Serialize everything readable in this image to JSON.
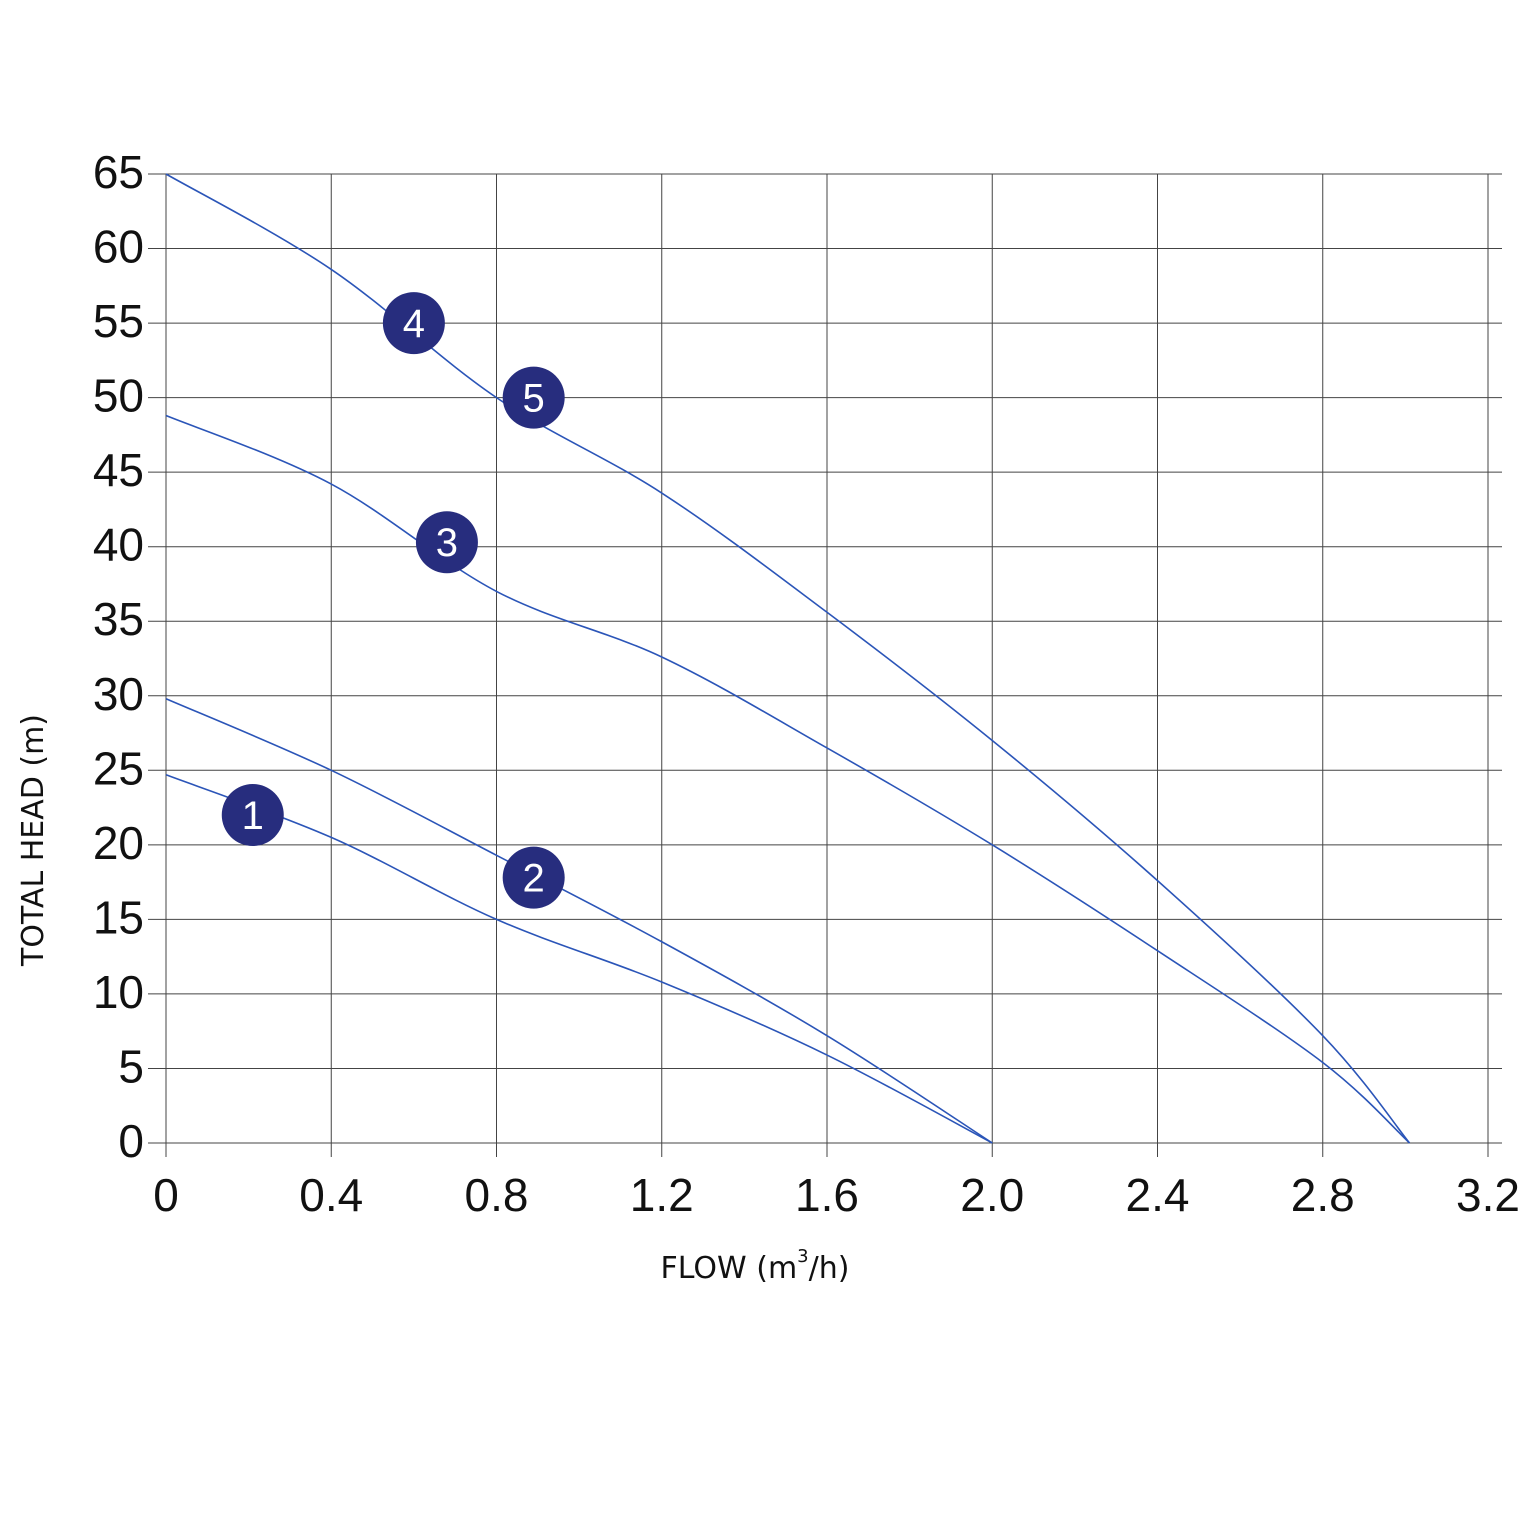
{
  "chart_data": {
    "type": "line",
    "xlabel": "FLOW (m³/h)",
    "xlabel_main": "FLOW (m",
    "xlabel_sup": "3",
    "xlabel_tail": "/h)",
    "ylabel": "TOTAL HEAD (m)",
    "x_ticks": [
      "0",
      "0.4",
      "0.8",
      "1.2",
      "1.6",
      "2.0",
      "2.4",
      "2.8",
      "3.2"
    ],
    "y_ticks": [
      "0",
      "5",
      "10",
      "15",
      "20",
      "25",
      "30",
      "35",
      "40",
      "45",
      "50",
      "55",
      "60",
      "65"
    ],
    "xlim": [
      0,
      3.2
    ],
    "ylim": [
      0,
      65
    ],
    "grid": true,
    "line_color": "#2b55b8",
    "badge_color": "#272d7e",
    "series": [
      {
        "label": "1",
        "points": [
          [
            0,
            24.7
          ],
          [
            0.4,
            20.5
          ],
          [
            0.8,
            15.0
          ],
          [
            1.2,
            10.8
          ],
          [
            1.6,
            5.9
          ],
          [
            2.0,
            0
          ]
        ],
        "badge": [
          0.21,
          22.0
        ]
      },
      {
        "label": "2",
        "points": [
          [
            0,
            29.8
          ],
          [
            0.4,
            25.0
          ],
          [
            0.8,
            19.3
          ],
          [
            1.2,
            13.5
          ],
          [
            1.6,
            7.2
          ],
          [
            2.0,
            0
          ]
        ],
        "badge": [
          0.89,
          17.8
        ]
      },
      {
        "label": "3",
        "points": [
          [
            0,
            48.8
          ],
          [
            0.4,
            44.2
          ],
          [
            0.8,
            37.0
          ],
          [
            1.2,
            32.6
          ],
          [
            1.6,
            26.5
          ],
          [
            2.0,
            20.0
          ],
          [
            2.4,
            12.9
          ],
          [
            2.8,
            5.4
          ],
          [
            3.01,
            0
          ]
        ],
        "badge": [
          0.68,
          40.3
        ]
      },
      {
        "label": "4",
        "points": [
          [
            0,
            65
          ],
          [
            0.4,
            58.6
          ],
          [
            0.8,
            50.0
          ],
          [
            1.2,
            43.6
          ],
          [
            1.6,
            35.6
          ],
          [
            2.0,
            27.0
          ],
          [
            2.4,
            17.6
          ],
          [
            2.8,
            7.2
          ],
          [
            3.01,
            0
          ]
        ],
        "badge": [
          0.6,
          55.0
        ]
      },
      {
        "label": "5",
        "points": [
          [
            0,
            65
          ],
          [
            0.4,
            58.6
          ],
          [
            0.8,
            50.0
          ],
          [
            1.2,
            43.6
          ],
          [
            1.6,
            35.6
          ],
          [
            2.0,
            27.0
          ],
          [
            2.4,
            17.6
          ],
          [
            2.8,
            7.2
          ],
          [
            3.01,
            0
          ]
        ],
        "badge": [
          0.89,
          50.0
        ]
      }
    ]
  }
}
